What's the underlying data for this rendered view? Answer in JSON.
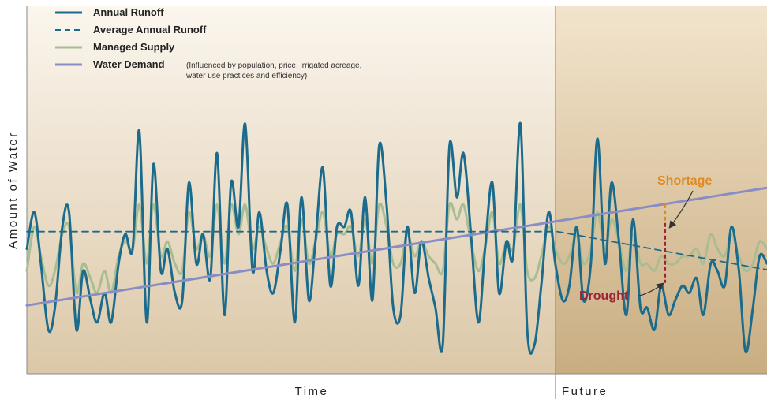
{
  "chart_data": {
    "type": "line",
    "xlabel": "Time",
    "ylabel": "Amount of Water",
    "future_label": "Future",
    "grid": false,
    "legend_position": "top-left",
    "ylim": [
      0,
      100
    ],
    "x_range": [
      0,
      100
    ],
    "future_start_x": 71.7,
    "series": [
      {
        "name": "Annual Runoff",
        "color": "#1a6b8c",
        "style": "solid",
        "x": [
          0.0,
          1.0,
          1.9,
          2.9,
          3.8,
          4.8,
          5.7,
          6.7,
          7.6,
          8.6,
          9.5,
          10.5,
          11.4,
          12.4,
          13.3,
          14.3,
          15.2,
          16.2,
          17.1,
          18.1,
          19.0,
          20.0,
          21.0,
          21.9,
          22.9,
          23.8,
          24.8,
          25.7,
          26.7,
          27.6,
          28.6,
          29.5,
          30.5,
          31.4,
          32.4,
          33.3,
          34.3,
          35.2,
          36.2,
          37.1,
          38.1,
          39.0,
          40.0,
          41.0,
          41.9,
          42.9,
          43.8,
          44.8,
          45.7,
          46.7,
          47.6,
          48.6,
          49.5,
          50.5,
          51.4,
          52.4,
          53.3,
          54.3,
          55.2,
          56.2,
          57.1,
          58.1,
          59.0,
          60.0,
          61.0,
          61.9,
          62.9,
          63.8,
          64.8,
          65.7,
          66.7,
          67.6,
          68.6,
          69.5,
          70.5,
          71.4,
          72.4,
          73.3,
          74.3,
          75.2,
          76.2,
          77.1,
          78.1,
          79.0,
          80.0,
          81.0,
          81.9,
          82.9,
          83.8,
          84.8,
          85.7,
          86.7,
          87.6,
          88.6,
          89.5,
          90.5,
          91.4,
          92.4,
          93.3,
          94.3,
          95.2,
          96.2,
          97.1,
          98.1,
          99.0,
          100.0
        ],
        "y": [
          34,
          44,
          30,
          12,
          18,
          40,
          44,
          12,
          28,
          20,
          14,
          22,
          14,
          30,
          38,
          34,
          66,
          14,
          57,
          28,
          34,
          22,
          20,
          52,
          30,
          38,
          26,
          60,
          16,
          52,
          40,
          68,
          28,
          44,
          28,
          22,
          34,
          46,
          14,
          48,
          20,
          36,
          56,
          24,
          40,
          40,
          44,
          24,
          48,
          20,
          62,
          46,
          18,
          16,
          40,
          22,
          36,
          26,
          18,
          8,
          62,
          48,
          60,
          38,
          14,
          34,
          52,
          22,
          36,
          32,
          68,
          12,
          8,
          24,
          44,
          30,
          20,
          24,
          40,
          20,
          30,
          64,
          30,
          52,
          36,
          16,
          42,
          18,
          18,
          12,
          24,
          16,
          20,
          24,
          22,
          26,
          16,
          30,
          28,
          24,
          40,
          28,
          6,
          18,
          32,
          30
        ]
      },
      {
        "name": "Average Annual Runoff",
        "color": "#1a6b8c",
        "style": "dashed",
        "x": [
          0,
          71.7,
          100
        ],
        "y": [
          38.7,
          38.7,
          28.3
        ]
      },
      {
        "name": "Managed Supply",
        "color": "#a9bd93",
        "style": "solid",
        "x": [
          0.0,
          1.0,
          1.9,
          2.9,
          3.8,
          4.8,
          5.7,
          6.7,
          7.6,
          8.6,
          9.5,
          10.5,
          11.4,
          12.4,
          13.3,
          14.3,
          15.2,
          16.2,
          17.1,
          18.1,
          19.0,
          20.0,
          21.0,
          21.9,
          22.9,
          23.8,
          24.8,
          25.7,
          26.7,
          27.6,
          28.6,
          29.5,
          30.5,
          31.4,
          32.4,
          33.3,
          34.3,
          35.2,
          36.2,
          37.1,
          38.1,
          39.0,
          40.0,
          41.0,
          41.9,
          42.9,
          43.8,
          44.8,
          45.7,
          46.7,
          47.6,
          48.6,
          49.5,
          50.5,
          51.4,
          52.4,
          53.3,
          54.3,
          55.2,
          56.2,
          57.1,
          58.1,
          59.0,
          60.0,
          61.0,
          61.9,
          62.9,
          63.8,
          64.8,
          65.7,
          66.7,
          67.6,
          68.6,
          69.5,
          70.5,
          71.4,
          72.4,
          73.3,
          74.3,
          75.2,
          76.2,
          77.1,
          78.1,
          79.0,
          80.0,
          81.0,
          81.9,
          82.9,
          83.8,
          84.8,
          85.7,
          86.7,
          87.6,
          88.6,
          89.5,
          90.5,
          91.4,
          92.4,
          93.3,
          94.3,
          95.2,
          96.2,
          97.1,
          98.1,
          99.0,
          100.0
        ],
        "y": [
          28,
          40,
          32,
          24,
          28,
          38,
          40,
          22,
          30,
          26,
          22,
          28,
          22,
          32,
          36,
          34,
          46,
          30,
          46,
          32,
          36,
          30,
          28,
          44,
          34,
          38,
          32,
          46,
          30,
          46,
          38,
          46,
          34,
          40,
          34,
          30,
          36,
          40,
          28,
          42,
          30,
          36,
          44,
          32,
          38,
          38,
          40,
          32,
          42,
          30,
          46,
          40,
          30,
          30,
          38,
          32,
          36,
          32,
          30,
          28,
          46,
          42,
          46,
          36,
          28,
          34,
          44,
          30,
          36,
          34,
          46,
          28,
          26,
          32,
          40,
          34,
          30,
          32,
          38,
          30,
          34,
          44,
          34,
          42,
          36,
          28,
          38,
          30,
          30,
          28,
          32,
          30,
          30,
          32,
          32,
          34,
          30,
          38,
          34,
          32,
          38,
          32,
          28,
          30,
          36,
          34
        ]
      },
      {
        "name": "Water Demand",
        "note_line1": "(Influenced by population, price, irrigated acreage,",
        "note_line2": "water use practices and efficiency)",
        "color": "#8a8dc4",
        "style": "solid",
        "x": [
          0,
          100
        ],
        "y": [
          18.6,
          50.6
        ]
      }
    ],
    "annotations": [
      {
        "text": "Shortage",
        "color": "#e08a1e",
        "x": 86.2
      },
      {
        "text": "Drought",
        "color": "#9c2435",
        "x": 86.2
      }
    ]
  }
}
